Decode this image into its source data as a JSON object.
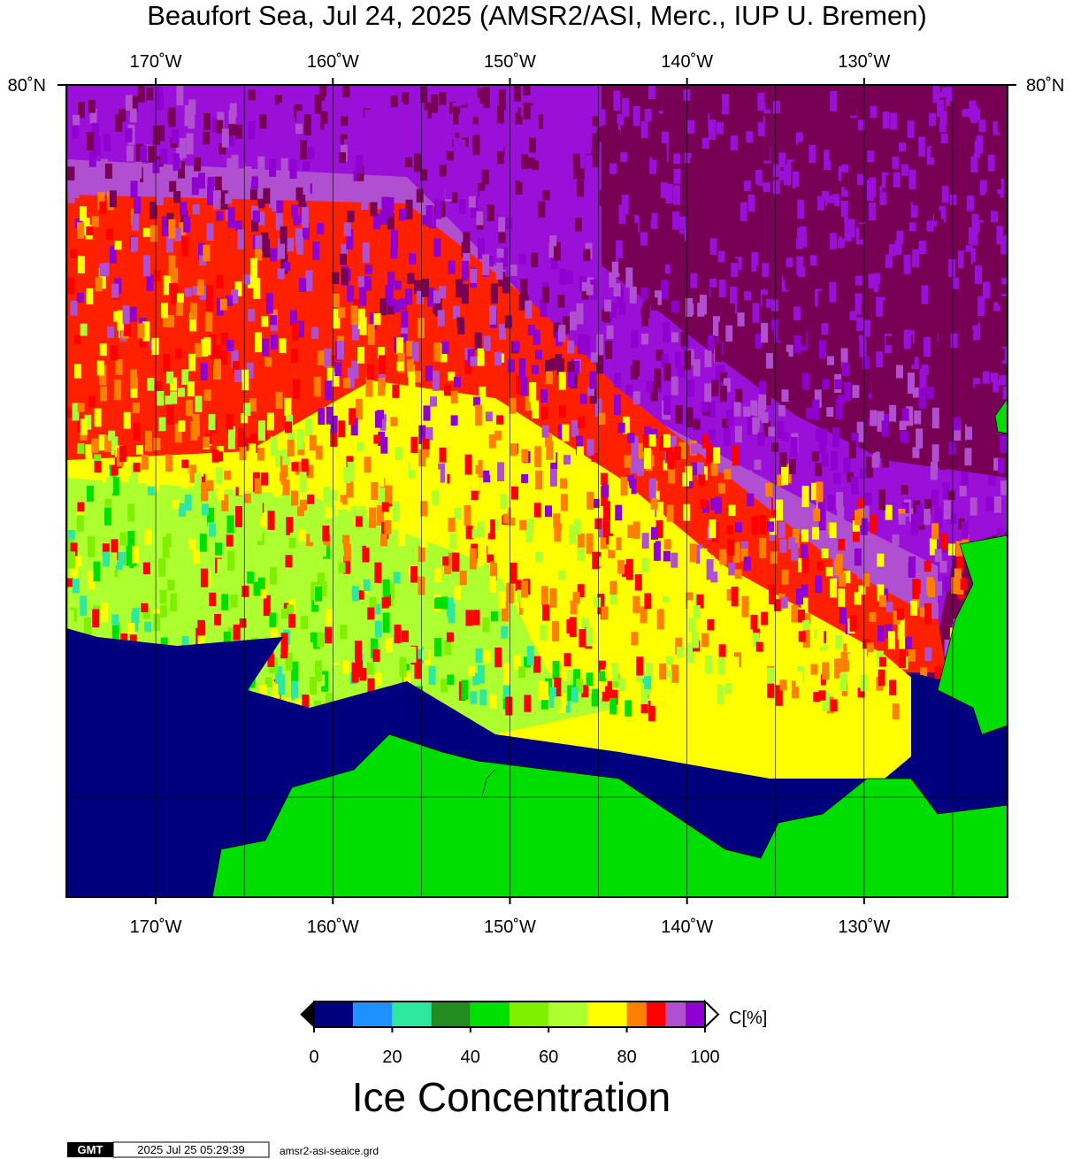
{
  "title": "Beaufort Sea, Jul 24, 2025 (AMSR2/ASI, Merc., IUP U. Bremen)",
  "map": {
    "xlim": [
      -175.05,
      -121.9
    ],
    "xticks": [
      {
        "value": -170,
        "label": "170˚W"
      },
      {
        "value": -160,
        "label": "160˚W"
      },
      {
        "value": -150,
        "label": "150˚W"
      },
      {
        "value": -140,
        "label": "140˚W"
      },
      {
        "value": -130,
        "label": "130˚W"
      }
    ],
    "xgrid": [
      -175,
      -170,
      -165,
      -160,
      -155,
      -150,
      -145,
      -140,
      -135,
      -130,
      -125
    ],
    "lat_label": "80˚N"
  },
  "colorbar": {
    "title": "Ice Concentration",
    "unit_label": "C[%]",
    "bounds": [
      0,
      10,
      20,
      30,
      40,
      50,
      60,
      70,
      80,
      85,
      90,
      95,
      100
    ],
    "colors": [
      "#00007f",
      "#1e90ff",
      "#2ee8a0",
      "#228b22",
      "#00e000",
      "#7ff000",
      "#adff2f",
      "#ffff00",
      "#ff8000",
      "#ff0000",
      "#b050d0",
      "#9000d0"
    ],
    "ticks": [
      0,
      20,
      40,
      60,
      80,
      100
    ]
  },
  "footer": {
    "logo": "GMT",
    "timestamp": "2025 Jul 25 05:29:39",
    "file": "amsr2-asi-seaice.grd"
  }
}
